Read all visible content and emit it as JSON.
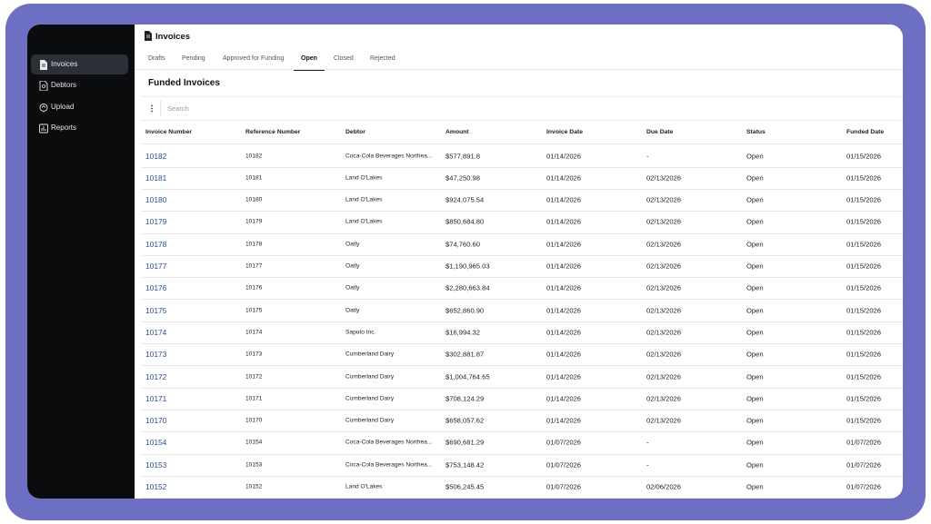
{
  "sidebar": {
    "items": [
      "Invoices",
      "Debtors",
      "Upload",
      "Reports"
    ],
    "active": 0
  },
  "header": {
    "title": "Invoices"
  },
  "tabs": {
    "items": [
      "Drafts",
      "Pending",
      "Approved for Funding",
      "Open",
      "Closed",
      "Rejected"
    ],
    "active": 3
  },
  "section": {
    "title": "Funded Invoices"
  },
  "search": {
    "placeholder": "Search"
  },
  "table": {
    "columns": [
      "Invoice Number",
      "Reference Number",
      "Debtor",
      "Amount",
      "Invoice Date",
      "Due Date",
      "Status",
      "Funded Date"
    ],
    "rows": [
      [
        "10182",
        "10182",
        "Coca-Cola Beverages Northea...",
        "$577,891.8",
        "01/14/2026",
        "-",
        "Open",
        "01/15/2026"
      ],
      [
        "10181",
        "10181",
        "Land O'Lakes",
        "$47,250.98",
        "01/14/2026",
        "02/13/2026",
        "Open",
        "01/15/2026"
      ],
      [
        "10180",
        "10180",
        "Land O'Lakes",
        "$924,075.54",
        "01/14/2026",
        "02/13/2026",
        "Open",
        "01/15/2026"
      ],
      [
        "10179",
        "10179",
        "Land O'Lakes",
        "$850,684.80",
        "01/14/2026",
        "02/13/2026",
        "Open",
        "01/15/2026"
      ],
      [
        "10178",
        "10178",
        "Oatly",
        "$74,760.60",
        "01/14/2026",
        "02/13/2026",
        "Open",
        "01/15/2026"
      ],
      [
        "10177",
        "10177",
        "Oatly",
        "$1,190,965.03",
        "01/14/2026",
        "02/13/2026",
        "Open",
        "01/15/2026"
      ],
      [
        "10176",
        "10176",
        "Oatly",
        "$2,280,663.84",
        "01/14/2026",
        "02/13/2026",
        "Open",
        "01/15/2026"
      ],
      [
        "10175",
        "10175",
        "Oatly",
        "$652,860.90",
        "01/14/2026",
        "02/13/2026",
        "Open",
        "01/15/2026"
      ],
      [
        "10174",
        "10174",
        "Saputo Inc.",
        "$16,994.32",
        "01/14/2026",
        "02/13/2026",
        "Open",
        "01/15/2026"
      ],
      [
        "10173",
        "10173",
        "Cumberland Dairy",
        "$302,881.87",
        "01/14/2026",
        "02/13/2026",
        "Open",
        "01/15/2026"
      ],
      [
        "10172",
        "10172",
        "Cumberland Dairy",
        "$1,004,764.65",
        "01/14/2026",
        "02/13/2026",
        "Open",
        "01/15/2026"
      ],
      [
        "10171",
        "10171",
        "Cumberland Dairy",
        "$708,124.29",
        "01/14/2026",
        "02/13/2026",
        "Open",
        "01/15/2026"
      ],
      [
        "10170",
        "10170",
        "Cumberland Dairy",
        "$658,057.62",
        "01/14/2026",
        "02/13/2026",
        "Open",
        "01/15/2026"
      ],
      [
        "10154",
        "10154",
        "Coca-Cola Beverages Northea...",
        "$690,681.29",
        "01/07/2026",
        "-",
        "Open",
        "01/07/2026"
      ],
      [
        "10153",
        "10153",
        "Coca-Cola Beverages Northea...",
        "$753,148.42",
        "01/07/2026",
        "-",
        "Open",
        "01/07/2026"
      ],
      [
        "10152",
        "10152",
        "Land O'Lakes",
        "$506,245.45",
        "01/07/2026",
        "02/06/2026",
        "Open",
        "01/07/2026"
      ]
    ]
  }
}
